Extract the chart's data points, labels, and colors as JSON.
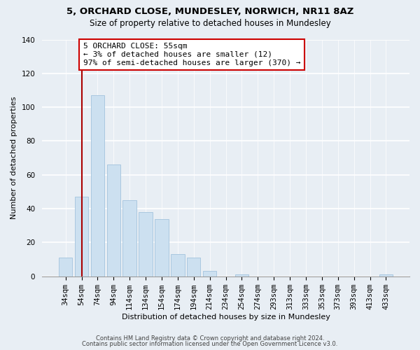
{
  "title1": "5, ORCHARD CLOSE, MUNDESLEY, NORWICH, NR11 8AZ",
  "title2": "Size of property relative to detached houses in Mundesley",
  "xlabel": "Distribution of detached houses by size in Mundesley",
  "ylabel": "Number of detached properties",
  "bar_labels": [
    "34sqm",
    "54sqm",
    "74sqm",
    "94sqm",
    "114sqm",
    "134sqm",
    "154sqm",
    "174sqm",
    "194sqm",
    "214sqm",
    "234sqm",
    "254sqm",
    "274sqm",
    "293sqm",
    "313sqm",
    "333sqm",
    "353sqm",
    "373sqm",
    "393sqm",
    "413sqm",
    "433sqm"
  ],
  "bar_values": [
    11,
    47,
    107,
    66,
    45,
    38,
    34,
    13,
    11,
    3,
    0,
    1,
    0,
    0,
    0,
    0,
    0,
    0,
    0,
    0,
    1
  ],
  "bar_color": "#cce0f0",
  "bar_edge_color": "#aac8e0",
  "vline_x": 1.0,
  "vline_color": "#aa0000",
  "annotation_line1": "5 ORCHARD CLOSE: 55sqm",
  "annotation_line2": "← 3% of detached houses are smaller (12)",
  "annotation_line3": "97% of semi-detached houses are larger (370) →",
  "annotation_box_color": "#ffffff",
  "annotation_box_edge": "#cc0000",
  "ylim": [
    0,
    140
  ],
  "yticks": [
    0,
    20,
    40,
    60,
    80,
    100,
    120,
    140
  ],
  "footer1": "Contains HM Land Registry data © Crown copyright and database right 2024.",
  "footer2": "Contains public sector information licensed under the Open Government Licence v3.0.",
  "bg_color": "#e8eef4",
  "grid_color": "#ffffff",
  "title1_fontsize": 9.5,
  "title2_fontsize": 8.5,
  "xlabel_fontsize": 8.0,
  "ylabel_fontsize": 8.0,
  "tick_fontsize": 7.5,
  "ann_fontsize": 8.0,
  "footer_fontsize": 6.0
}
